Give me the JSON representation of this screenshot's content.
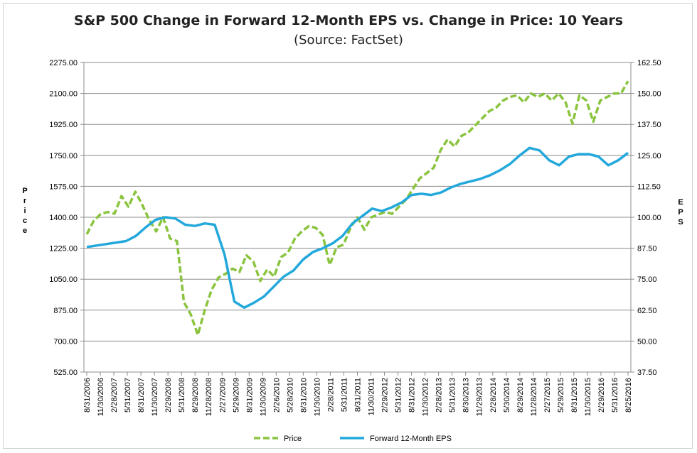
{
  "chart_data": {
    "type": "line",
    "title": "S&P 500 Change in Forward 12-Month EPS vs. Change in Price: 10 Years",
    "subtitle": "(Source: FactSet)",
    "ylabel_left": "Price",
    "ylabel_right": "EPS",
    "ylim_left": [
      525,
      2275
    ],
    "ylim_right": [
      37.5,
      162.5
    ],
    "yticks_left": [
      "2275.00",
      "2100.00",
      "1925.00",
      "1750.00",
      "1575.00",
      "1400.00",
      "1225.00",
      "1050.00",
      "875.00",
      "700.00",
      "525.00"
    ],
    "yticks_right": [
      "162.50",
      "150.00",
      "137.50",
      "125.00",
      "112.50",
      "100.00",
      "87.50",
      "75.00",
      "62.50",
      "50.00",
      "37.50"
    ],
    "x_tick_labels": [
      "8/31/2006",
      "11/30/2006",
      "2/28/2007",
      "5/31/2007",
      "8/31/2007",
      "11/30/2007",
      "2/29/2008",
      "5/31/2008",
      "8/29/2008",
      "11/28/2008",
      "2/27/2009",
      "5/29/2009",
      "8/31/2009",
      "11/30/2009",
      "2/26/2010",
      "5/28/2010",
      "8/31/2010",
      "11/30/2010",
      "2/28/2011",
      "5/31/2011",
      "8/31/2011",
      "11/30/2011",
      "2/29/2012",
      "5/31/2012",
      "8/31/2012",
      "11/30/2012",
      "2/28/2013",
      "5/31/2013",
      "8/30/2013",
      "11/29/2013",
      "2/28/2014",
      "5/30/2014",
      "8/29/2014",
      "11/28/2014",
      "2/27/2015",
      "5/29/2015",
      "8/31/2015",
      "11/30/2015",
      "2/29/2016",
      "5/31/2016",
      "8/25/2016"
    ],
    "grid": true,
    "legend_position": "bottom",
    "series": [
      {
        "name": "Price",
        "axis": "left",
        "color": "#8ac43f",
        "style": "dashed",
        "values": [
          1304,
          1380,
          1418,
          1430,
          1420,
          1520,
          1460,
          1545,
          1470,
          1385,
          1320,
          1400,
          1280,
          1265,
          920,
          850,
          735,
          875,
          990,
          1060,
          1080,
          1110,
          1090,
          1185,
          1150,
          1040,
          1105,
          1065,
          1175,
          1200,
          1280,
          1320,
          1350,
          1340,
          1300,
          1130,
          1230,
          1245,
          1340,
          1400,
          1330,
          1400,
          1415,
          1430,
          1420,
          1460,
          1500,
          1560,
          1620,
          1650,
          1680,
          1780,
          1840,
          1800,
          1860,
          1880,
          1920,
          1960,
          2000,
          2020,
          2060,
          2080,
          2090,
          2050,
          2100,
          2080,
          2100,
          2060,
          2100,
          2050,
          1930,
          2090,
          2060,
          1940,
          2060,
          2080,
          2100,
          2100,
          2170
        ]
      },
      {
        "name": "Forward 12-Month EPS",
        "axis": "right",
        "color": "#23a8dc",
        "style": "solid",
        "values": [
          88,
          88.6,
          89.2,
          89.8,
          90.4,
          92.5,
          96,
          99,
          100,
          99.5,
          97,
          96.5,
          97.5,
          97,
          85,
          66,
          63.5,
          65.5,
          68,
          72,
          76,
          78.5,
          83,
          86,
          87.5,
          89.5,
          92.5,
          97.5,
          100.5,
          103.5,
          102.5,
          104,
          106,
          109,
          109.5,
          109,
          110,
          112,
          113.5,
          114.5,
          115.5,
          117,
          119,
          121.5,
          125,
          128,
          127,
          123,
          121,
          124.5,
          125.5,
          125.5,
          124.5,
          121,
          123,
          126
        ]
      }
    ]
  }
}
